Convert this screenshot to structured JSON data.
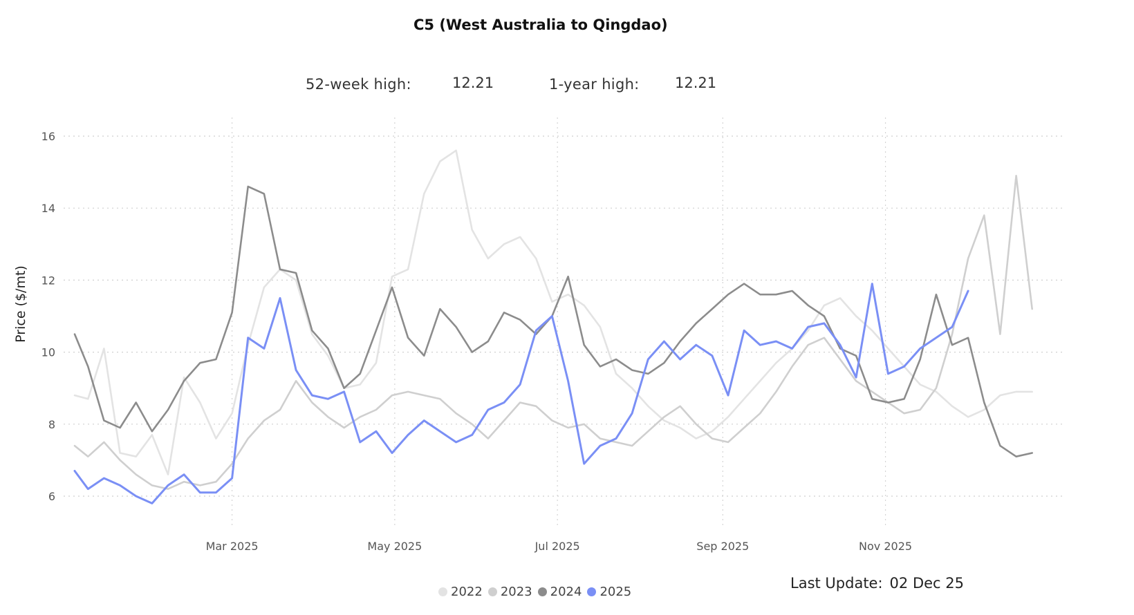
{
  "header": {
    "title": "C5 (West Australia to Qingdao)",
    "stats": [
      {
        "label": "52-week high:",
        "value": "12.21"
      },
      {
        "label": "1-year high:",
        "value": "12.21"
      }
    ]
  },
  "footer": {
    "last_update_label": "Last Update:",
    "last_update_value": "02 Dec 25"
  },
  "chart_data": {
    "type": "line",
    "title": "",
    "xlabel": "",
    "ylabel": "Price ($/mt)",
    "ylim": [
      5,
      16.5
    ],
    "yticks": [
      6,
      8,
      10,
      12,
      14,
      16
    ],
    "xlim_day": [
      1,
      365
    ],
    "xticks": [
      {
        "day": 60,
        "label": "Mar 2025"
      },
      {
        "day": 121,
        "label": "May 2025"
      },
      {
        "day": 182,
        "label": "Jul 2025"
      },
      {
        "day": 244,
        "label": "Sep 2025"
      },
      {
        "day": 305,
        "label": "Nov 2025"
      }
    ],
    "grid": true,
    "legend_position": "bottom",
    "x_unit": "day of year",
    "series": [
      {
        "name": "2022",
        "color": "#e3e3e3",
        "x": [
          1,
          6,
          12,
          18,
          24,
          30,
          36,
          42,
          48,
          54,
          60,
          66,
          72,
          78,
          84,
          90,
          96,
          102,
          108,
          114,
          120,
          126,
          132,
          138,
          144,
          150,
          156,
          162,
          168,
          174,
          180,
          186,
          192,
          198,
          204,
          210,
          216,
          222,
          228,
          234,
          240,
          246,
          252,
          258,
          264,
          270,
          276,
          282,
          288,
          294,
          300,
          306,
          312,
          318,
          324,
          330,
          336,
          342,
          348,
          354,
          360
        ],
        "y": [
          8.8,
          8.7,
          10.1,
          7.2,
          7.1,
          7.7,
          6.6,
          9.3,
          8.6,
          7.6,
          8.3,
          10.2,
          11.8,
          12.3,
          12.0,
          10.5,
          9.9,
          9.0,
          9.1,
          9.7,
          12.1,
          12.3,
          14.4,
          15.3,
          15.6,
          13.4,
          12.6,
          13.0,
          13.2,
          12.6,
          11.4,
          11.6,
          11.3,
          10.7,
          9.4,
          9.0,
          8.5,
          8.1,
          7.9,
          7.6,
          7.8,
          8.2,
          8.7,
          9.2,
          9.7,
          10.1,
          10.6,
          11.3,
          11.5,
          11.0,
          10.6,
          10.1,
          9.6,
          9.1,
          8.9,
          8.5,
          8.2,
          8.4,
          8.8,
          8.9,
          8.9
        ]
      },
      {
        "name": "2023",
        "color": "#cfcfcf",
        "x": [
          1,
          6,
          12,
          18,
          24,
          30,
          36,
          42,
          48,
          54,
          60,
          66,
          72,
          78,
          84,
          90,
          96,
          102,
          108,
          114,
          120,
          126,
          132,
          138,
          144,
          150,
          156,
          162,
          168,
          174,
          180,
          186,
          192,
          198,
          204,
          210,
          216,
          222,
          228,
          234,
          240,
          246,
          252,
          258,
          264,
          270,
          276,
          282,
          288,
          294,
          300,
          306,
          312,
          318,
          324,
          330,
          336,
          342,
          348,
          354,
          360
        ],
        "y": [
          7.4,
          7.1,
          7.5,
          7.0,
          6.6,
          6.3,
          6.2,
          6.4,
          6.3,
          6.4,
          6.9,
          7.6,
          8.1,
          8.4,
          9.2,
          8.6,
          8.2,
          7.9,
          8.2,
          8.4,
          8.8,
          8.9,
          8.8,
          8.7,
          8.3,
          8.0,
          7.6,
          8.1,
          8.6,
          8.5,
          8.1,
          7.9,
          8.0,
          7.6,
          7.5,
          7.4,
          7.8,
          8.2,
          8.5,
          8.0,
          7.6,
          7.5,
          7.9,
          8.3,
          8.9,
          9.6,
          10.2,
          10.4,
          9.8,
          9.2,
          8.9,
          8.6,
          8.3,
          8.4,
          9.0,
          10.5,
          12.6,
          13.8,
          10.5,
          14.9,
          11.2
        ]
      },
      {
        "name": "2024",
        "color": "#8c8c8c",
        "x": [
          1,
          6,
          12,
          18,
          24,
          30,
          36,
          42,
          48,
          54,
          60,
          66,
          72,
          78,
          84,
          90,
          96,
          102,
          108,
          114,
          120,
          126,
          132,
          138,
          144,
          150,
          156,
          162,
          168,
          174,
          180,
          186,
          192,
          198,
          204,
          210,
          216,
          222,
          228,
          234,
          240,
          246,
          252,
          258,
          264,
          270,
          276,
          282,
          288,
          294,
          300,
          306,
          312,
          318,
          324,
          330,
          336,
          342,
          348,
          354,
          360
        ],
        "y": [
          10.5,
          9.6,
          8.1,
          7.9,
          8.6,
          7.8,
          8.4,
          9.2,
          9.7,
          9.8,
          11.1,
          14.6,
          14.4,
          12.3,
          12.2,
          10.6,
          10.1,
          9.0,
          9.4,
          10.6,
          11.8,
          10.4,
          9.9,
          11.2,
          10.7,
          10.0,
          10.3,
          11.1,
          10.9,
          10.5,
          11.0,
          12.1,
          10.2,
          9.6,
          9.8,
          9.5,
          9.4,
          9.7,
          10.3,
          10.8,
          11.2,
          11.6,
          11.9,
          11.6,
          11.6,
          11.7,
          11.3,
          11.0,
          10.1,
          9.9,
          8.7,
          8.6,
          8.7,
          9.8,
          11.6,
          10.2,
          10.4,
          8.6,
          7.4,
          7.1,
          7.2
        ]
      },
      {
        "name": "2025",
        "color": "#7a8ff5",
        "x": [
          1,
          6,
          12,
          18,
          24,
          30,
          36,
          42,
          48,
          54,
          60,
          66,
          72,
          78,
          84,
          90,
          96,
          102,
          108,
          114,
          120,
          126,
          132,
          138,
          144,
          150,
          156,
          162,
          168,
          174,
          180,
          186,
          192,
          198,
          204,
          210,
          216,
          222,
          228,
          234,
          240,
          246,
          252,
          258,
          264,
          270,
          276,
          282,
          288,
          294,
          300,
          306,
          312,
          318,
          324,
          330,
          336
        ],
        "y": [
          6.7,
          6.2,
          6.5,
          6.3,
          6.0,
          5.8,
          6.3,
          6.6,
          6.1,
          6.1,
          6.5,
          10.4,
          10.1,
          11.5,
          9.5,
          8.8,
          8.7,
          8.9,
          7.5,
          7.8,
          7.2,
          7.7,
          8.1,
          7.8,
          7.5,
          7.7,
          8.4,
          8.6,
          9.1,
          10.6,
          11.0,
          9.2,
          6.9,
          7.4,
          7.6,
          8.3,
          9.8,
          10.3,
          9.8,
          10.2,
          9.9,
          8.8,
          10.6,
          10.2,
          10.3,
          10.1,
          10.7,
          10.8,
          10.2,
          9.3,
          11.9,
          9.4,
          9.6,
          10.1,
          10.4,
          10.7,
          11.7
        ]
      }
    ]
  }
}
